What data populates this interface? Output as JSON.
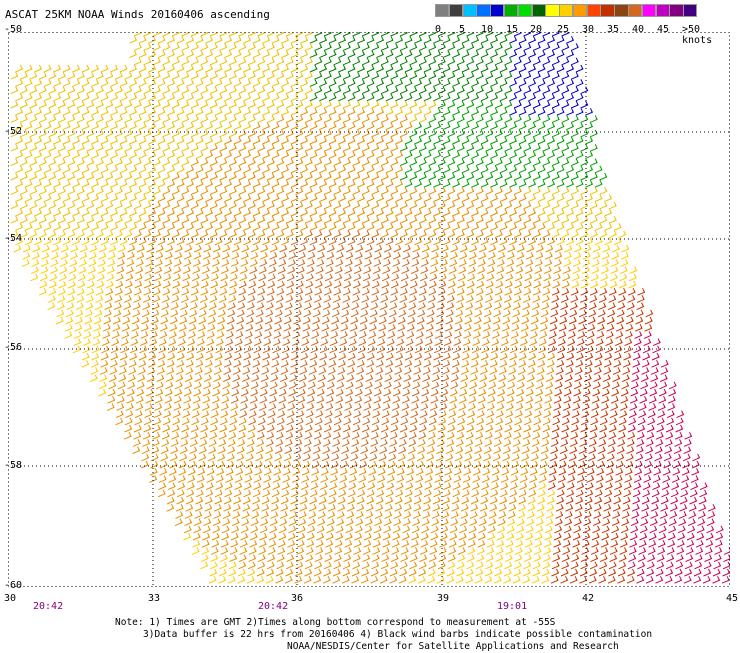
{
  "title": "ASCAT 25KM NOAA Winds 20160406 ascending",
  "colorbar": {
    "labels": [
      "0",
      "5",
      "10",
      "15",
      "20",
      "25",
      "30",
      "35",
      "40",
      "45",
      ">50 knots"
    ],
    "colors": [
      "#7f7f7f",
      "#3f3f3f",
      "#00bfff",
      "#0070ff",
      "#0000cc",
      "#00b000",
      "#00dd00",
      "#006400",
      "#ffff00",
      "#ffd000",
      "#ff9a00",
      "#ff4400",
      "#c03000",
      "#8b4513",
      "#d2691e",
      "#ff00ff",
      "#c000c0",
      "#800080",
      "#400080"
    ]
  },
  "map": {
    "lat_labels": [
      "-50",
      "-52",
      "-54",
      "-56",
      "-58",
      "-60"
    ],
    "lon_labels": [
      "30",
      "33",
      "36",
      "39",
      "42",
      "45"
    ],
    "time_labels": [
      "20:42",
      "20:42",
      "19:01"
    ]
  },
  "note": {
    "line1": "Note: 1) Times are GMT 2)Times along bottom correspond to measurement at -55S",
    "line2": "3)Data buffer is 22 hrs from 20160406 4) Black wind barbs indicate possible contamination",
    "line3": "NOAA/NESDIS/Center for Satellite Applications and Research"
  }
}
